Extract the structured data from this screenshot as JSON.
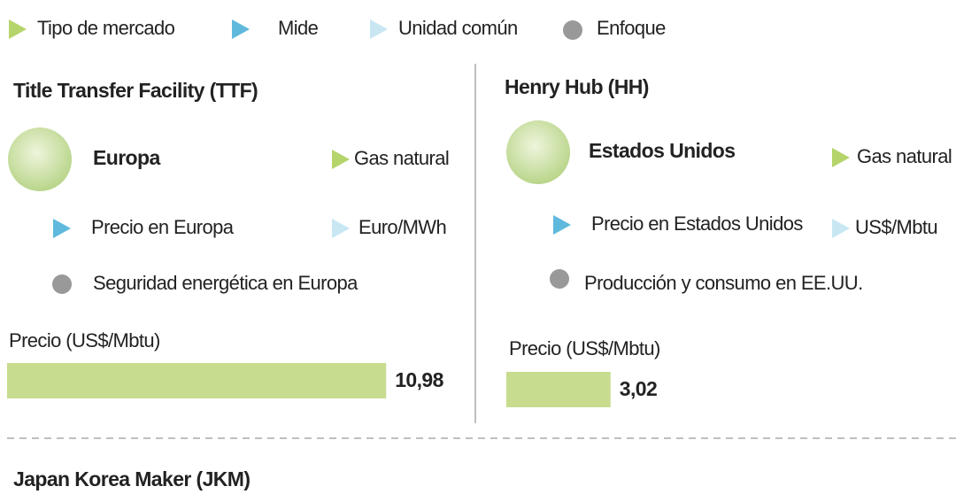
{
  "legend": [
    "Tipo de mercado",
    "Mide",
    "Unidad común",
    "Enfoque"
  ],
  "panels": [
    {
      "title": "Title Transfer Facility (TTF)",
      "region": "Europa",
      "market_type": "Gas natural",
      "measures": "Precio en Europa",
      "unit": "Euro/MWh",
      "focus": "Seguridad energética en Europa",
      "price_caption": "Precio (US$/Mbtu)",
      "price": 10.98,
      "price_text": "10,98"
    },
    {
      "title": "Henry Hub (HH)",
      "region": "Estados Unidos",
      "market_type": "Gas natural",
      "measures": "Precio en Estados Unidos",
      "unit": "US$/Mbtu",
      "focus": "Producción y consumo en EE.UU.",
      "price_caption": "Precio (US$/Mbtu)",
      "price": 3.02,
      "price_text": "3,02"
    }
  ],
  "footer_title": "Japan Korea Maker (JKM)"
}
